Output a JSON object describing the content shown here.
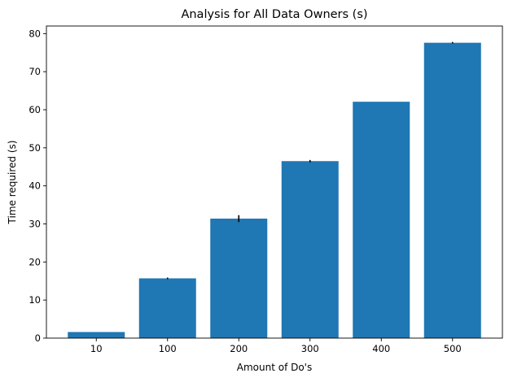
{
  "chart_data": {
    "type": "bar",
    "title": "Analysis for All Data Owners (s)",
    "xlabel": "Amount of Do's",
    "ylabel": "Time required (s)",
    "categories": [
      "10",
      "100",
      "200",
      "300",
      "400",
      "500"
    ],
    "values": [
      1.6,
      15.7,
      31.4,
      46.5,
      62.1,
      77.6
    ],
    "errors": [
      0.0,
      0.2,
      0.9,
      0.3,
      0.0,
      0.2
    ],
    "ylim": [
      0,
      82
    ],
    "yticks": [
      0,
      10,
      20,
      30,
      40,
      50,
      60,
      70,
      80
    ],
    "grid": false,
    "legend": "none",
    "colors": {
      "bar": "#1f77b4",
      "error": "#000000",
      "axis": "#000000"
    }
  }
}
